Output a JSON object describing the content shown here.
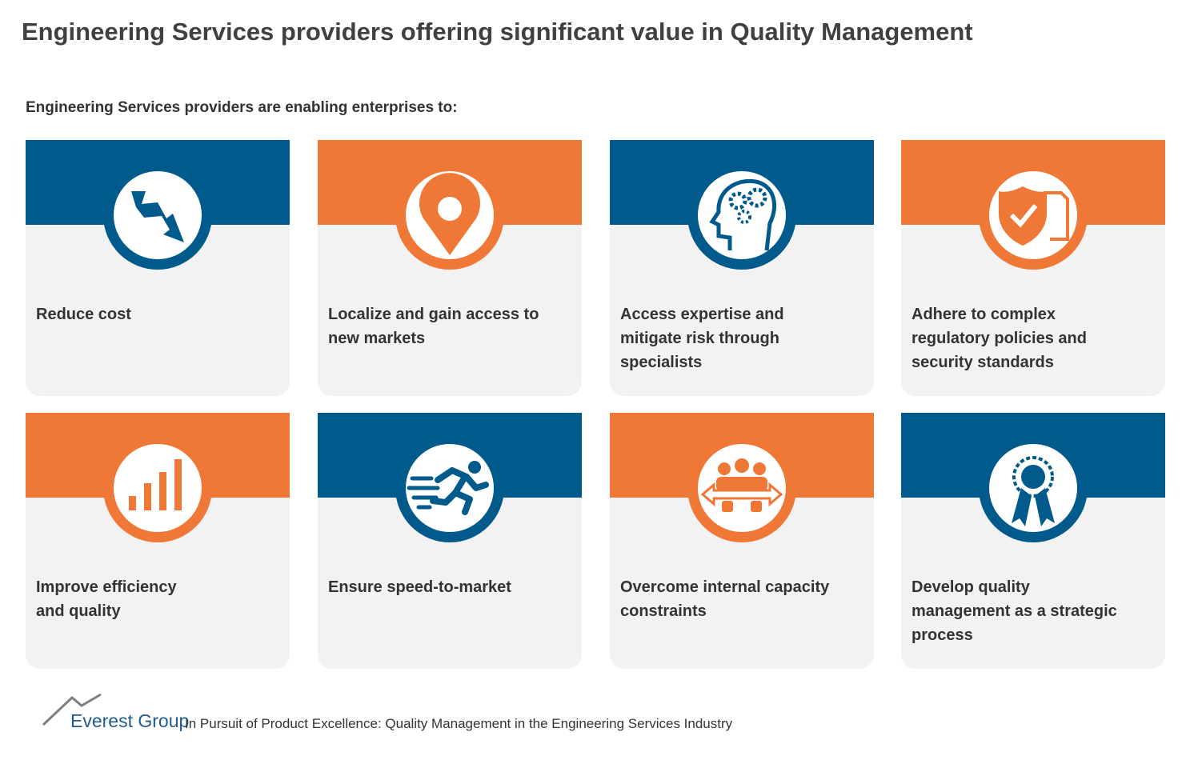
{
  "header": {
    "title": "Engineering Services providers offering significant value in Quality Management",
    "subtitle": "Engineering Services providers are enabling enterprises to:"
  },
  "cards": [
    {
      "lines": [
        "Reduce cost"
      ]
    },
    {
      "lines": [
        "Localize and gain access to",
        "new markets"
      ]
    },
    {
      "lines": [
        "Access expertise and",
        "mitigate risk through",
        "specialists"
      ]
    },
    {
      "lines": [
        "Adhere to complex",
        "regulatory policies and",
        "security standards"
      ]
    },
    {
      "lines": [
        "Improve efficiency",
        "and quality"
      ]
    },
    {
      "lines": [
        "Ensure speed-to-market"
      ]
    },
    {
      "lines": [
        "Overcome internal capacity",
        "constraints"
      ]
    },
    {
      "lines": [
        "Develop quality",
        "management as a strategic",
        "process"
      ]
    }
  ],
  "footer": {
    "brand": "Everest Group",
    "source": "In Pursuit of Product Excellence: Quality Management in the Engineering Services Industry"
  }
}
